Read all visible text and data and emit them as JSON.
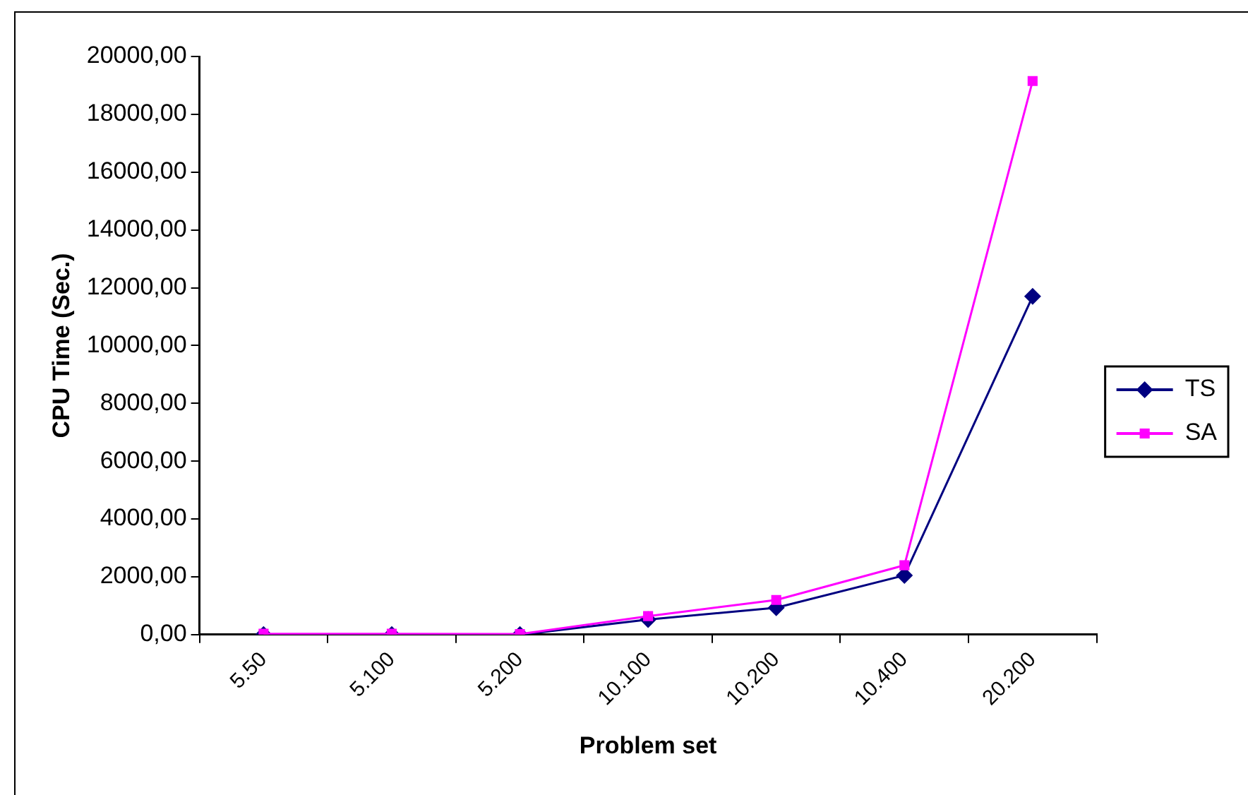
{
  "chart_data": {
    "type": "line",
    "xlabel": "Problem set",
    "ylabel": "CPU Time (Sec.)",
    "categories": [
      "5.50",
      "5.100",
      "5.200",
      "10.100",
      "10.200",
      "10.400",
      "20.200"
    ],
    "series": [
      {
        "name": "TS",
        "color": "#000080",
        "marker": "diamond",
        "values": [
          0,
          0,
          0,
          520,
          930,
          2050,
          11700
        ]
      },
      {
        "name": "SA",
        "color": "#ff00ff",
        "marker": "square",
        "values": [
          30,
          30,
          20,
          640,
          1200,
          2400,
          19150
        ]
      }
    ],
    "ylim": [
      0,
      20000
    ],
    "yticks": [
      {
        "value": 0,
        "label": "0,00"
      },
      {
        "value": 2000,
        "label": "2000,00"
      },
      {
        "value": 4000,
        "label": "4000,00"
      },
      {
        "value": 6000,
        "label": "6000,00"
      },
      {
        "value": 8000,
        "label": "8000,00"
      },
      {
        "value": 10000,
        "label": "10000,00"
      },
      {
        "value": 12000,
        "label": "12000,00"
      },
      {
        "value": 14000,
        "label": "14000,00"
      },
      {
        "value": 16000,
        "label": "16000,00"
      },
      {
        "value": 18000,
        "label": "18000,00"
      },
      {
        "value": 20000,
        "label": "20000,00"
      }
    ],
    "grid": false,
    "legend": "right",
    "line_style": "solid"
  }
}
